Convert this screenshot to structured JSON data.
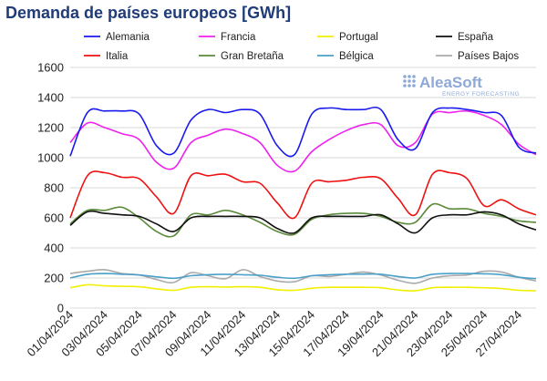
{
  "title": "Demanda de países europeos [GWh]",
  "logo": {
    "name": "AleaSoft",
    "subtitle": "ENERGY FORECASTING"
  },
  "chart_data": {
    "type": "line",
    "title": "Demanda de países europeos [GWh]",
    "xlabel": "",
    "ylabel": "",
    "ylim": [
      0,
      1600
    ],
    "yticks": [
      0,
      200,
      400,
      600,
      800,
      1000,
      1200,
      1400,
      1600
    ],
    "grid": true,
    "legend_position": "top",
    "x": [
      "01/04/2024",
      "02/04/2024",
      "03/04/2024",
      "04/04/2024",
      "05/04/2024",
      "06/04/2024",
      "07/04/2024",
      "08/04/2024",
      "09/04/2024",
      "10/04/2024",
      "11/04/2024",
      "12/04/2024",
      "13/04/2024",
      "14/04/2024",
      "15/04/2024",
      "16/04/2024",
      "17/04/2024",
      "18/04/2024",
      "19/04/2024",
      "20/04/2024",
      "21/04/2024",
      "22/04/2024",
      "23/04/2024",
      "24/04/2024",
      "25/04/2024",
      "26/04/2024",
      "27/04/2024",
      "28/04/2024"
    ],
    "x_tick_labels": [
      "01/04/2024",
      "03/04/2024",
      "05/04/2024",
      "07/04/2024",
      "09/04/2024",
      "11/04/2024",
      "13/04/2024",
      "15/04/2024",
      "17/04/2024",
      "19/04/2024",
      "21/04/2024",
      "23/04/2024",
      "25/04/2024",
      "27/04/2024"
    ],
    "series": [
      {
        "name": "Alemania",
        "color": "#1a1aee",
        "values": [
          1010,
          1300,
          1310,
          1310,
          1290,
          1080,
          1030,
          1250,
          1320,
          1300,
          1320,
          1290,
          1080,
          1020,
          1290,
          1330,
          1320,
          1320,
          1320,
          1120,
          1060,
          1300,
          1330,
          1320,
          1300,
          1280,
          1070,
          1030
        ]
      },
      {
        "name": "Francia",
        "color": "#ee22ee",
        "values": [
          1100,
          1230,
          1200,
          1160,
          1120,
          970,
          930,
          1100,
          1150,
          1190,
          1160,
          1100,
          950,
          910,
          1040,
          1120,
          1180,
          1220,
          1220,
          1080,
          1100,
          1290,
          1300,
          1310,
          1280,
          1220,
          1090,
          1020
        ]
      },
      {
        "name": "Portugal",
        "color": "#f0f000",
        "values": [
          135,
          155,
          148,
          145,
          142,
          128,
          118,
          138,
          142,
          140,
          142,
          138,
          122,
          118,
          132,
          138,
          138,
          138,
          135,
          120,
          115,
          135,
          138,
          138,
          135,
          130,
          118,
          115
        ]
      },
      {
        "name": "España",
        "color": "#111111",
        "values": [
          550,
          640,
          630,
          620,
          610,
          560,
          510,
          600,
          610,
          610,
          610,
          600,
          530,
          500,
          600,
          610,
          610,
          610,
          620,
          560,
          500,
          600,
          620,
          620,
          640,
          620,
          560,
          520
        ]
      },
      {
        "name": "Italia",
        "color": "#ee1111",
        "values": [
          600,
          880,
          900,
          870,
          860,
          740,
          630,
          880,
          880,
          890,
          840,
          830,
          700,
          600,
          830,
          840,
          850,
          870,
          860,
          730,
          620,
          890,
          900,
          860,
          680,
          720,
          660,
          620
        ]
      },
      {
        "name": "Gran Bretaña",
        "color": "#5a8a3a",
        "values": [
          560,
          650,
          650,
          670,
          600,
          510,
          480,
          620,
          620,
          650,
          620,
          570,
          510,
          490,
          590,
          620,
          630,
          630,
          610,
          570,
          570,
          690,
          660,
          660,
          630,
          610,
          580,
          570
        ]
      },
      {
        "name": "Bélgica",
        "color": "#4aa0c8",
        "values": [
          200,
          225,
          230,
          225,
          220,
          208,
          198,
          215,
          222,
          225,
          222,
          218,
          205,
          198,
          215,
          222,
          225,
          226,
          225,
          210,
          200,
          225,
          230,
          230,
          228,
          222,
          205,
          195
        ]
      },
      {
        "name": "Países Bajos",
        "color": "#aaaaaa",
        "values": [
          230,
          245,
          255,
          230,
          220,
          190,
          170,
          235,
          215,
          195,
          255,
          210,
          180,
          175,
          215,
          210,
          225,
          240,
          220,
          185,
          165,
          200,
          215,
          220,
          245,
          240,
          205,
          180
        ]
      }
    ]
  }
}
